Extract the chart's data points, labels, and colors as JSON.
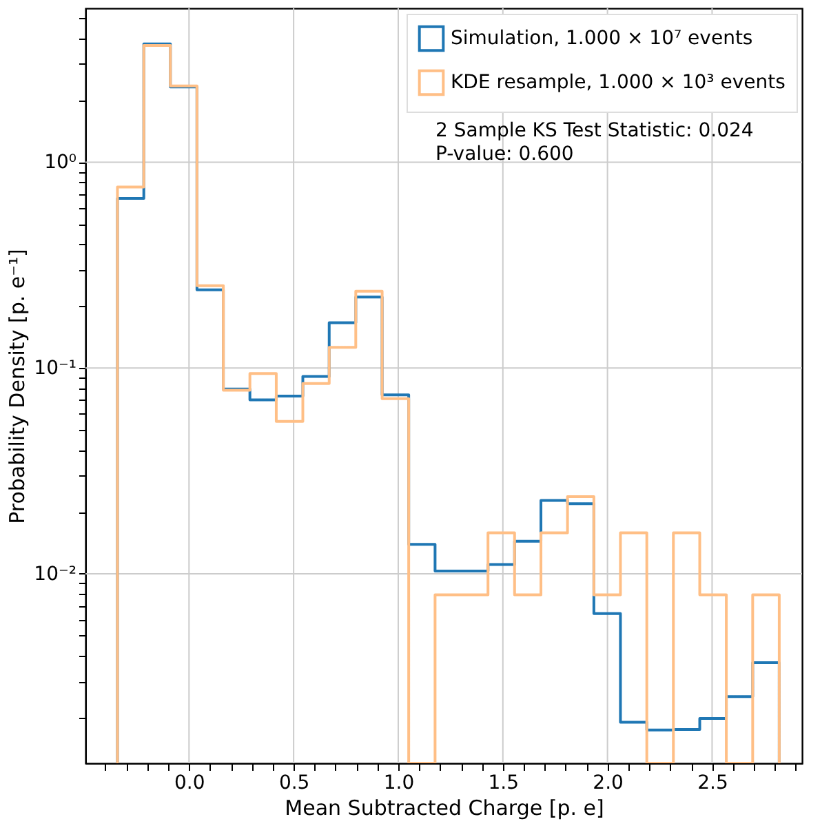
{
  "chart_data": {
    "type": "histogram",
    "xlabel": "Mean Subtracted Charge [p. e]",
    "ylabel": "Probability Density [p. e⁻¹]",
    "bins": [
      -0.342,
      -0.216,
      -0.089,
      0.038,
      0.164,
      0.291,
      0.417,
      0.544,
      0.67,
      0.797,
      0.923,
      1.05,
      1.176,
      1.303,
      1.429,
      1.556,
      1.682,
      1.809,
      1.935,
      2.062,
      2.188,
      2.315,
      2.441,
      2.568,
      2.694,
      2.821
    ],
    "series": [
      {
        "name": "Simulation, 1.000 × 10⁷ events",
        "color": "#1f77b4",
        "values": [
          0.667,
          3.76,
          2.32,
          0.24,
          0.079,
          0.07,
          0.073,
          0.091,
          0.166,
          0.221,
          0.074,
          0.0139,
          0.0103,
          0.0103,
          0.0111,
          0.0144,
          0.0227,
          0.0219,
          0.0064,
          0.0019,
          0.00174,
          0.00175,
          0.00198,
          0.00253,
          0.0037
        ]
      },
      {
        "name": "KDE resample, 1.000 × 10³ events",
        "color": "#ffbf86",
        "values": [
          0.757,
          3.69,
          2.35,
          0.251,
          0.078,
          0.094,
          0.055,
          0.084,
          0.126,
          0.236,
          0.071,
          null,
          0.0079,
          0.0079,
          0.0158,
          0.0079,
          0.0158,
          0.0237,
          0.0079,
          0.0158,
          null,
          0.0158,
          0.0079,
          null,
          0.0079
        ]
      }
    ],
    "annotations": [
      "2 Sample KS Test Statistic: 0.024",
      "P-value: 0.600"
    ],
    "log": "y",
    "grid": true,
    "legend": "top right",
    "line_style": "solid",
    "xlim": [
      -0.495,
      2.93
    ],
    "ylim": [
      0.0012,
      5.6
    ],
    "xticks": [
      {
        "value": -0.4,
        "label": null
      },
      {
        "value": -0.3,
        "label": null
      },
      {
        "value": -0.2,
        "label": null
      },
      {
        "value": -0.1,
        "label": null
      },
      {
        "value": 0,
        "label": "0.0"
      },
      {
        "value": 0.1,
        "label": null
      },
      {
        "value": 0.2,
        "label": null
      },
      {
        "value": 0.3,
        "label": null
      },
      {
        "value": 0.4,
        "label": null
      },
      {
        "value": 0.5,
        "label": "0.5"
      },
      {
        "value": 0.6,
        "label": null
      },
      {
        "value": 0.7,
        "label": null
      },
      {
        "value": 0.8,
        "label": null
      },
      {
        "value": 0.9,
        "label": null
      },
      {
        "value": 1,
        "label": "1.0"
      },
      {
        "value": 1.1,
        "label": null
      },
      {
        "value": 1.2,
        "label": null
      },
      {
        "value": 1.3,
        "label": null
      },
      {
        "value": 1.4,
        "label": null
      },
      {
        "value": 1.5,
        "label": "1.5"
      },
      {
        "value": 1.6,
        "label": null
      },
      {
        "value": 1.7,
        "label": null
      },
      {
        "value": 1.8,
        "label": null
      },
      {
        "value": 1.9,
        "label": null
      },
      {
        "value": 2,
        "label": "2.0"
      },
      {
        "value": 2.1,
        "label": null
      },
      {
        "value": 2.2,
        "label": null
      },
      {
        "value": 2.3,
        "label": null
      },
      {
        "value": 2.4,
        "label": null
      },
      {
        "value": 2.5,
        "label": "2.5"
      },
      {
        "value": 2.6,
        "label": null
      },
      {
        "value": 2.7,
        "label": null
      },
      {
        "value": 2.8,
        "label": null
      },
      {
        "value": 2.9,
        "label": null
      }
    ],
    "yticks": [
      {
        "value": 0.002,
        "label": null
      },
      {
        "value": 0.003,
        "label": null
      },
      {
        "value": 0.004,
        "label": null
      },
      {
        "value": 0.005,
        "label": null
      },
      {
        "value": 0.006,
        "label": null
      },
      {
        "value": 0.007,
        "label": null
      },
      {
        "value": 0.008,
        "label": null
      },
      {
        "value": 0.009,
        "label": null
      },
      {
        "value": 0.01,
        "label": "10⁻²"
      },
      {
        "value": 0.02,
        "label": null
      },
      {
        "value": 0.03,
        "label": null
      },
      {
        "value": 0.04,
        "label": null
      },
      {
        "value": 0.05,
        "label": null
      },
      {
        "value": 0.06,
        "label": null
      },
      {
        "value": 0.07,
        "label": null
      },
      {
        "value": 0.08,
        "label": null
      },
      {
        "value": 0.09,
        "label": null
      },
      {
        "value": 0.1,
        "label": "10⁻¹"
      },
      {
        "value": 0.2,
        "label": null
      },
      {
        "value": 0.3,
        "label": null
      },
      {
        "value": 0.4,
        "label": null
      },
      {
        "value": 0.5,
        "label": null
      },
      {
        "value": 0.6,
        "label": null
      },
      {
        "value": 0.7,
        "label": null
      },
      {
        "value": 0.8,
        "label": null
      },
      {
        "value": 0.9,
        "label": null
      },
      {
        "value": 1,
        "label": "10⁰"
      },
      {
        "value": 2,
        "label": null
      },
      {
        "value": 3,
        "label": null
      },
      {
        "value": 4,
        "label": null
      },
      {
        "value": 5,
        "label": null
      }
    ]
  }
}
